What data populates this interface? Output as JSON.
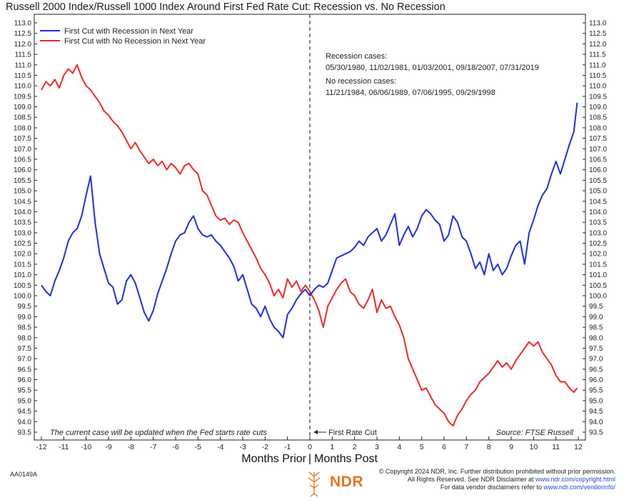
{
  "chart_data": {
    "type": "line",
    "title": "Russell 2000 Index/Russell 1000 Index Around First Fed Rate Cut: Recession vs. No Recession",
    "xlabel_left": "Months Prior",
    "xlabel_right": "Months Post",
    "xlim": [
      -12,
      12
    ],
    "ylim": [
      93.5,
      113.0
    ],
    "x_ticks": [
      "-12",
      "-11",
      "-10",
      "-9",
      "-8",
      "-7",
      "-6",
      "-5",
      "-4",
      "-3",
      "-2",
      "-1",
      "0",
      "1",
      "2",
      "3",
      "4",
      "5",
      "6",
      "7",
      "8",
      "9",
      "10",
      "11",
      "12"
    ],
    "y_ticks": [
      "113.0",
      "112.5",
      "112.0",
      "111.5",
      "111.0",
      "110.5",
      "110.0",
      "109.5",
      "109.0",
      "108.5",
      "108.0",
      "107.5",
      "107.0",
      "106.5",
      "106.0",
      "105.5",
      "105.0",
      "104.5",
      "104.0",
      "103.5",
      "103.0",
      "102.5",
      "102.0",
      "101.5",
      "101.0",
      "100.5",
      "100.0",
      "99.5",
      "99.0",
      "98.5",
      "98.0",
      "97.5",
      "97.0",
      "96.5",
      "96.0",
      "95.5",
      "95.0",
      "94.5",
      "94.0",
      "93.5"
    ],
    "y_ticks_both_sides": true,
    "legend_position": "top-left",
    "colors": {
      "recession": "#1f2ee0",
      "no_recession": "#ee2a24"
    },
    "series": [
      {
        "name": "First Cut with Recession in Next Year",
        "color": "#1f2ee0",
        "x": [
          -12,
          -11.8,
          -11.6,
          -11.4,
          -11.2,
          -11,
          -10.8,
          -10.6,
          -10.4,
          -10.2,
          -10,
          -9.8,
          -9.6,
          -9.4,
          -9.2,
          -9,
          -8.8,
          -8.6,
          -8.4,
          -8.2,
          -8,
          -7.8,
          -7.6,
          -7.4,
          -7.2,
          -7,
          -6.8,
          -6.6,
          -6.4,
          -6.2,
          -6,
          -5.8,
          -5.6,
          -5.4,
          -5.2,
          -5,
          -4.8,
          -4.6,
          -4.4,
          -4.2,
          -4,
          -3.8,
          -3.6,
          -3.4,
          -3.2,
          -3,
          -2.8,
          -2.6,
          -2.4,
          -2.2,
          -2,
          -1.8,
          -1.6,
          -1.4,
          -1.2,
          -1,
          -0.8,
          -0.6,
          -0.4,
          -0.2,
          0,
          0.2,
          0.4,
          0.6,
          0.8,
          1,
          1.2,
          1.4,
          1.6,
          1.8,
          2,
          2.2,
          2.4,
          2.6,
          2.8,
          3,
          3.2,
          3.4,
          3.6,
          3.8,
          4,
          4.2,
          4.4,
          4.6,
          4.8,
          5,
          5.2,
          5.4,
          5.6,
          5.8,
          6,
          6.2,
          6.4,
          6.6,
          6.8,
          7,
          7.2,
          7.4,
          7.6,
          7.8,
          8,
          8.2,
          8.4,
          8.6,
          8.8,
          9,
          9.2,
          9.4,
          9.6,
          9.8,
          10,
          10.2,
          10.4,
          10.6,
          10.8,
          11,
          11.2,
          11.4,
          11.6,
          11.8,
          11.95
        ],
        "values": [
          100.5,
          100.2,
          100.0,
          100.7,
          101.2,
          101.8,
          102.6,
          103.0,
          103.2,
          103.8,
          104.8,
          105.7,
          103.5,
          102.0,
          101.3,
          100.6,
          100.4,
          99.6,
          99.8,
          100.7,
          101.0,
          100.6,
          99.9,
          99.2,
          98.8,
          99.3,
          100.1,
          100.7,
          101.3,
          102.0,
          102.6,
          102.9,
          103.0,
          103.5,
          103.8,
          103.2,
          102.9,
          102.8,
          102.9,
          102.6,
          102.4,
          102.1,
          101.8,
          101.4,
          100.7,
          101.0,
          100.3,
          99.6,
          99.4,
          99.0,
          99.5,
          98.9,
          98.5,
          98.3,
          98.0,
          99.1,
          99.4,
          99.8,
          100.1,
          100.3,
          100.0,
          100.3,
          100.5,
          100.4,
          100.6,
          101.2,
          101.8,
          101.9,
          102.0,
          102.1,
          102.3,
          102.6,
          102.4,
          102.8,
          103.0,
          103.2,
          102.6,
          102.9,
          103.4,
          103.9,
          102.4,
          102.9,
          103.3,
          102.8,
          103.2,
          103.8,
          104.1,
          103.9,
          103.6,
          103.4,
          102.6,
          102.9,
          103.8,
          103.5,
          102.8,
          102.6,
          102.0,
          101.3,
          101.6,
          101.0,
          102.0,
          101.2,
          101.5,
          101.0,
          101.3,
          101.9,
          102.4,
          102.6,
          101.5,
          103.0,
          103.6,
          104.3,
          104.8,
          105.1,
          105.8,
          106.4,
          105.8,
          106.5,
          107.2,
          107.8,
          109.2
        ]
      },
      {
        "name": "First Cut with No Recession in Next Year",
        "color": "#ee2a24",
        "x": [
          -12,
          -11.8,
          -11.6,
          -11.4,
          -11.2,
          -11,
          -10.8,
          -10.6,
          -10.4,
          -10.2,
          -10,
          -9.8,
          -9.6,
          -9.4,
          -9.2,
          -9,
          -8.8,
          -8.6,
          -8.4,
          -8.2,
          -8,
          -7.8,
          -7.6,
          -7.4,
          -7.2,
          -7,
          -6.8,
          -6.6,
          -6.4,
          -6.2,
          -6,
          -5.8,
          -5.6,
          -5.4,
          -5.2,
          -5,
          -4.8,
          -4.6,
          -4.4,
          -4.2,
          -4,
          -3.8,
          -3.6,
          -3.4,
          -3.2,
          -3,
          -2.8,
          -2.6,
          -2.4,
          -2.2,
          -2,
          -1.8,
          -1.6,
          -1.4,
          -1.2,
          -1,
          -0.8,
          -0.6,
          -0.4,
          -0.2,
          0,
          0.2,
          0.4,
          0.6,
          0.8,
          1,
          1.2,
          1.4,
          1.6,
          1.8,
          2,
          2.2,
          2.4,
          2.6,
          2.8,
          3,
          3.2,
          3.4,
          3.6,
          3.8,
          4,
          4.2,
          4.4,
          4.6,
          4.8,
          5,
          5.2,
          5.4,
          5.6,
          5.8,
          6,
          6.2,
          6.4,
          6.6,
          6.8,
          7,
          7.2,
          7.4,
          7.6,
          7.8,
          8,
          8.2,
          8.4,
          8.6,
          8.8,
          9,
          9.2,
          9.4,
          9.6,
          9.8,
          10,
          10.2,
          10.4,
          10.6,
          10.8,
          11,
          11.2,
          11.4,
          11.6,
          11.8,
          11.95
        ],
        "values": [
          109.8,
          110.2,
          110.0,
          110.3,
          109.9,
          110.5,
          110.8,
          110.6,
          111.0,
          110.4,
          110.0,
          109.8,
          109.5,
          109.2,
          108.8,
          108.6,
          108.3,
          108.1,
          107.8,
          107.4,
          107.0,
          107.3,
          106.9,
          106.6,
          106.3,
          106.5,
          106.2,
          106.4,
          106.0,
          106.3,
          106.1,
          105.8,
          106.2,
          106.3,
          106.0,
          105.8,
          105.0,
          104.8,
          104.3,
          103.8,
          103.6,
          103.7,
          103.4,
          103.6,
          103.5,
          103.0,
          102.6,
          102.2,
          101.8,
          101.3,
          101.0,
          100.6,
          100.0,
          100.3,
          99.9,
          100.8,
          100.4,
          100.7,
          100.2,
          100.5,
          100.2,
          99.8,
          99.3,
          98.5,
          99.5,
          99.9,
          100.3,
          100.6,
          100.8,
          100.2,
          100.0,
          99.6,
          99.4,
          99.8,
          100.3,
          99.2,
          99.8,
          99.4,
          99.5,
          99.0,
          98.6,
          98.0,
          97.0,
          96.5,
          96.0,
          95.5,
          95.6,
          95.2,
          94.8,
          94.6,
          94.4,
          94.0,
          93.8,
          94.3,
          94.6,
          95.0,
          95.3,
          95.5,
          95.9,
          96.1,
          96.3,
          96.6,
          96.9,
          96.6,
          96.8,
          96.5,
          96.9,
          97.2,
          97.5,
          97.8,
          97.6,
          97.8,
          97.3,
          97.0,
          96.7,
          96.2,
          95.9,
          95.9,
          95.6,
          95.4,
          95.6
        ]
      }
    ],
    "vline": {
      "x": 0,
      "label": "First Rate Cut"
    },
    "annotations": {
      "recession_header": "Recession cases:",
      "recession_dates": "05/30/1980, 11/02/1981, 01/03/2001, 09/18/2007, 07/31/2019",
      "no_recession_header": "No recession cases:",
      "no_recession_dates": "11/21/1984, 06/06/1989, 07/06/1995, 09/29/1998",
      "note": "The current case will be updated when the Fed starts rate cuts",
      "source": "Source: FTSE Russell"
    }
  },
  "footer": {
    "id": "AA0149A",
    "line1": "© Copyright 2024 NDR, Inc. Further distribution prohibited without prior permission.",
    "line2_prefix": "All Rights Reserved. See NDR Disclaimer at ",
    "line2_link": "www.ndr.com/copyright.html",
    "line3_prefix": "For data vendor disclaimers refer to ",
    "line3_link": "www.ndr.com/vendorinfo/",
    "logo_text": "NDR"
  }
}
